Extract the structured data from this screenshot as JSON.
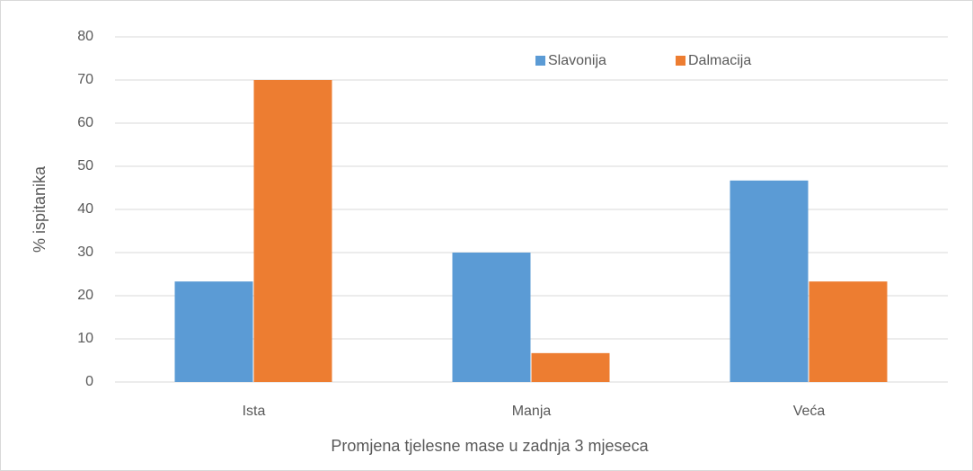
{
  "chart_data": {
    "type": "bar",
    "categories": [
      "Ista",
      "Manja",
      "Veća"
    ],
    "series": [
      {
        "name": "Slavonija",
        "color": "#5b9bd5",
        "values": [
          23.3,
          30,
          46.7
        ]
      },
      {
        "name": "Dalmacija",
        "color": "#ed7d31",
        "values": [
          70,
          6.7,
          23.3
        ]
      }
    ],
    "ylim": [
      0,
      80
    ],
    "yticks": [
      0,
      10,
      20,
      30,
      40,
      50,
      60,
      70,
      80
    ],
    "ylabel": "% ispitanika",
    "xlabel": "Promjena tjelesne mase u zadnja 3 mjeseca",
    "grid": true,
    "legend": "top"
  }
}
